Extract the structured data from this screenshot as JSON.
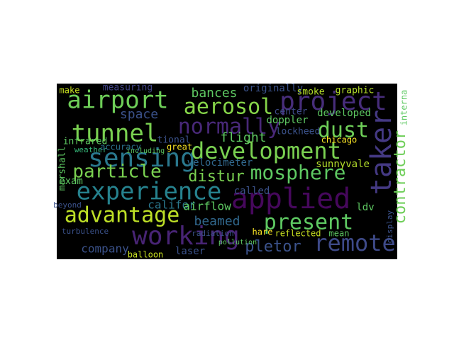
{
  "chart_data": {
    "type": "wordcloud",
    "background": "#000000",
    "words": [
      {
        "text": "airport",
        "color": "#6ece58"
      },
      {
        "text": "aerosol",
        "color": "#86d549"
      },
      {
        "text": "project",
        "color": "#472d7b"
      },
      {
        "text": "tunnel",
        "color": "#7ad151"
      },
      {
        "text": "normally",
        "color": "#482878"
      },
      {
        "text": "sensing",
        "color": "#2a788e"
      },
      {
        "text": "development",
        "color": "#7ad151"
      },
      {
        "text": "dust",
        "color": "#6ece58"
      },
      {
        "text": "taker",
        "color": "#443983"
      },
      {
        "text": "contractor",
        "color": "#6ece58"
      },
      {
        "text": "particle",
        "color": "#7ad151"
      },
      {
        "text": "mosphere",
        "color": "#5ec962"
      },
      {
        "text": "experience",
        "color": "#26828e"
      },
      {
        "text": "applied",
        "color": "#46085c"
      },
      {
        "text": "advantage",
        "color": "#bddf26"
      },
      {
        "text": "working",
        "color": "#482475"
      },
      {
        "text": "present",
        "color": "#5ec962"
      },
      {
        "text": "remote",
        "color": "#3e4a89"
      },
      {
        "text": "beamed",
        "color": "#31688e"
      },
      {
        "text": "company",
        "color": "#3b528b"
      },
      {
        "text": "exam",
        "color": "#5ec962"
      },
      {
        "text": "space",
        "color": "#3b528b"
      },
      {
        "text": "bances",
        "color": "#5ec962"
      },
      {
        "text": "measuring",
        "color": "#414487"
      },
      {
        "text": "originally",
        "color": "#3b528b"
      },
      {
        "text": "smoke",
        "color": "#b5de2b"
      },
      {
        "text": "graphic",
        "color": "#b5de2b"
      },
      {
        "text": "make",
        "color": "#c8e020"
      },
      {
        "text": "infrared",
        "color": "#5ec962"
      },
      {
        "text": "marshall",
        "color": "#5ec962"
      },
      {
        "text": "weather",
        "color": "#35b779"
      },
      {
        "text": "accuracy",
        "color": "#2c728e"
      },
      {
        "text": "tional",
        "color": "#3b528b"
      },
      {
        "text": "great",
        "color": "#fde725"
      },
      {
        "text": "flight",
        "color": "#5ec962"
      },
      {
        "text": "lockheed",
        "color": "#3b528b"
      },
      {
        "text": "doppler",
        "color": "#5ec962"
      },
      {
        "text": "center",
        "color": "#3e4a89"
      },
      {
        "text": "developed",
        "color": "#5ec962"
      },
      {
        "text": "chicago",
        "color": "#fde725"
      },
      {
        "text": "sunnyvale",
        "color": "#b5de2b"
      },
      {
        "text": "distur",
        "color": "#7ad151"
      },
      {
        "text": "velocimeter",
        "color": "#31688e"
      },
      {
        "text": "califor",
        "color": "#2a788e"
      },
      {
        "text": "airflow",
        "color": "#5ec962"
      },
      {
        "text": "called",
        "color": "#3b528b"
      },
      {
        "text": "ldv",
        "color": "#5ec962"
      },
      {
        "text": "reflected",
        "color": "#c8e020"
      },
      {
        "text": "mean",
        "color": "#5ec962"
      },
      {
        "text": "hare",
        "color": "#fde725"
      },
      {
        "text": "pletor",
        "color": "#3b528b"
      },
      {
        "text": "laser",
        "color": "#3b528b"
      },
      {
        "text": "balloon",
        "color": "#c8e020"
      },
      {
        "text": "turbulence",
        "color": "#3b528b"
      },
      {
        "text": "beyond",
        "color": "#3b528b"
      },
      {
        "text": "radiation",
        "color": "#3b528b"
      },
      {
        "text": "including",
        "color": "#5ec962"
      },
      {
        "text": "interna",
        "color": "#5ec962"
      },
      {
        "text": "pollution",
        "color": "#5ec962"
      },
      {
        "text": "display",
        "color": "#3b528b"
      }
    ]
  }
}
